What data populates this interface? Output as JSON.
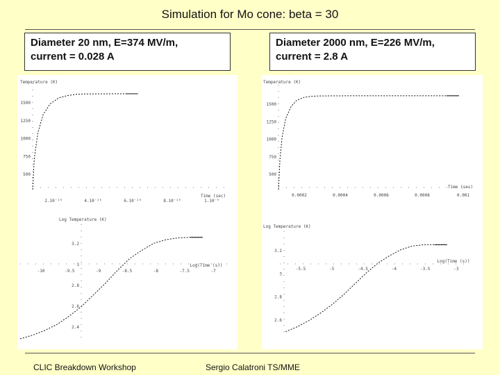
{
  "slide": {
    "title": "Simulation for Mo cone: beta = 30",
    "footer_left": "CLIC Breakdown Workshop",
    "footer_right": "Sergio Calatroni TS/MME"
  },
  "panels": {
    "left": {
      "caption_line1": "Diameter 20 nm, E=374 MV/m,",
      "caption_line2": "current = 0.028 A"
    },
    "right": {
      "caption_line1": "Diameter 2000 nm, E=226 MV/m,",
      "caption_line2": "current = 2.8 A"
    }
  },
  "chart_data": [
    {
      "type": "line",
      "panel": "left-top",
      "xlabel": "Time (sec)",
      "ylabel": "Temperature (K)",
      "xticks": [
        "2.10⁻¹⁰",
        "4.10⁻¹⁰",
        "6.10⁻¹⁰",
        "8.10⁻¹⁰",
        "1.10⁻⁹"
      ],
      "yticks": [
        "1500",
        "1250",
        "1000",
        "750",
        "500"
      ],
      "xlim": [
        0,
        1.1e-09
      ],
      "ylim": [
        300,
        1700
      ],
      "series": [
        {
          "x": [
            0,
            1e-11,
            3e-11,
            6e-11,
            1e-10,
            1.5e-10,
            2e-10,
            2.5e-10,
            3e-10,
            4e-10,
            5e-10,
            6e-10
          ],
          "y": [
            300,
            720,
            1050,
            1290,
            1430,
            1510,
            1540,
            1555,
            1560,
            1562,
            1563,
            1563
          ]
        }
      ]
    },
    {
      "type": "line",
      "panel": "left-bottom",
      "xlabel": "Log(Time (s))",
      "ylabel": "Log Temperature (K)",
      "xticks": [
        "-10",
        "-9.5",
        "-9",
        "-8.5",
        "-8",
        "-7.5",
        "-7"
      ],
      "yticks": [
        "3.2",
        "3",
        "2.8",
        "2.6",
        "2.4"
      ],
      "xlim": [
        -10.2,
        -6.8
      ],
      "ylim": [
        2.3,
        3.3
      ],
      "series": [
        {
          "x": [
            -10.2,
            -10,
            -9.8,
            -9.6,
            -9.4,
            -9.2,
            -9.0,
            -8.8,
            -8.6,
            -8.4,
            -8.2,
            -8.0,
            -7.8,
            -7.6,
            -7.4,
            -7.2
          ],
          "y": [
            2.33,
            2.36,
            2.4,
            2.45,
            2.52,
            2.6,
            2.7,
            2.8,
            2.91,
            3.01,
            3.08,
            3.14,
            3.17,
            3.185,
            3.19,
            3.19
          ]
        }
      ]
    },
    {
      "type": "line",
      "panel": "right-top",
      "xlabel": "Time (sec)",
      "ylabel": "Temperature (K)",
      "xticks": [
        "0.0002",
        "0.0004",
        "0.0006",
        "0.0008",
        "0.001"
      ],
      "yticks": [
        "1500",
        "1250",
        "1000",
        "750",
        "500"
      ],
      "xlim": [
        0,
        0.0011
      ],
      "ylim": [
        300,
        1700
      ],
      "series": [
        {
          "x": [
            0,
            8e-06,
            2e-05,
            4e-05,
            7e-05,
            0.0001,
            0.00014,
            0.00018,
            0.00022,
            0.0003,
            0.0004,
            0.0006,
            0.0008,
            0.001
          ],
          "y": [
            300,
            700,
            1000,
            1250,
            1410,
            1490,
            1530,
            1545,
            1550,
            1552,
            1553,
            1553,
            1553,
            1553
          ]
        }
      ]
    },
    {
      "type": "line",
      "panel": "right-bottom",
      "xlabel": "Log(Time (s))",
      "ylabel": "Log Temperature (K)",
      "xticks": [
        "-5.5",
        "-5",
        "-4.5",
        "-4",
        "-3.5",
        "-3"
      ],
      "yticks": [
        "3.2",
        "3",
        "2.8",
        "2.6"
      ],
      "xlim": [
        -6.1,
        -2.8
      ],
      "ylim": [
        2.45,
        3.3
      ],
      "series": [
        {
          "x": [
            -6.0,
            -5.8,
            -5.6,
            -5.4,
            -5.2,
            -5.0,
            -4.8,
            -4.6,
            -4.4,
            -4.2,
            -4.0,
            -3.8,
            -3.6,
            -3.4,
            -3.2
          ],
          "y": [
            2.48,
            2.52,
            2.57,
            2.63,
            2.7,
            2.78,
            2.87,
            2.96,
            3.04,
            3.1,
            3.15,
            3.18,
            3.19,
            3.19,
            3.19
          ]
        }
      ]
    }
  ]
}
